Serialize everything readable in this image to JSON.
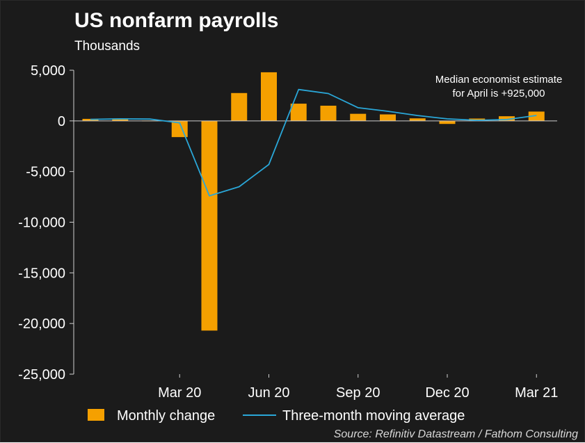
{
  "chart_data": {
    "type": "bar",
    "title": "US nonfarm payrolls",
    "subtitle": "Thousands",
    "categories": [
      "Dec 19",
      "Jan 20",
      "Feb 20",
      "Mar 20",
      "Apr 20",
      "May 20",
      "Jun 20",
      "Jul 20",
      "Aug 20",
      "Sep 20",
      "Oct 20",
      "Nov 20",
      "Dec 20",
      "Jan 21",
      "Feb 21",
      "Mar 21"
    ],
    "series": [
      {
        "name": "Monthly change",
        "type": "bar",
        "color": "#f5a000",
        "values": [
          200,
          240,
          30,
          -1600,
          -20700,
          2750,
          4800,
          1700,
          1500,
          700,
          640,
          250,
          -300,
          230,
          460,
          920
        ]
      },
      {
        "name": "Three-month moving average",
        "type": "line",
        "color": "#2aa7d8",
        "values": [
          150,
          200,
          180,
          -200,
          -7400,
          -6500,
          -4300,
          3100,
          2700,
          1300,
          950,
          530,
          200,
          60,
          130,
          540
        ]
      }
    ],
    "x_tick_labels": [
      {
        "label": "Mar 20",
        "category": "Mar 20"
      },
      {
        "label": "Jun 20",
        "category": "Jun 20"
      },
      {
        "label": "Sep 20",
        "category": "Sep 20"
      },
      {
        "label": "Dec 20",
        "category": "Dec 20"
      },
      {
        "label": "Mar 21",
        "category": "Mar 21"
      }
    ],
    "y_ticks": [
      5000,
      0,
      -5000,
      -10000,
      -15000,
      -20000,
      -25000
    ],
    "y_tick_labels": [
      "5,000",
      "0",
      "-5,000",
      "-10,000",
      "-15,000",
      "-20,000",
      "-25,000"
    ],
    "ylim": [
      -25000,
      5000
    ],
    "grid": false,
    "legend_position": "bottom",
    "annotation": {
      "line1": "Median economist estimate",
      "line2": "for April is +925,000"
    },
    "source": "Source: Refinitiv Datastream / Fathom Consulting"
  },
  "colors": {
    "background": "#1b1b1b",
    "bar": "#f5a000",
    "line": "#2aa7d8",
    "text": "#ffffff"
  }
}
